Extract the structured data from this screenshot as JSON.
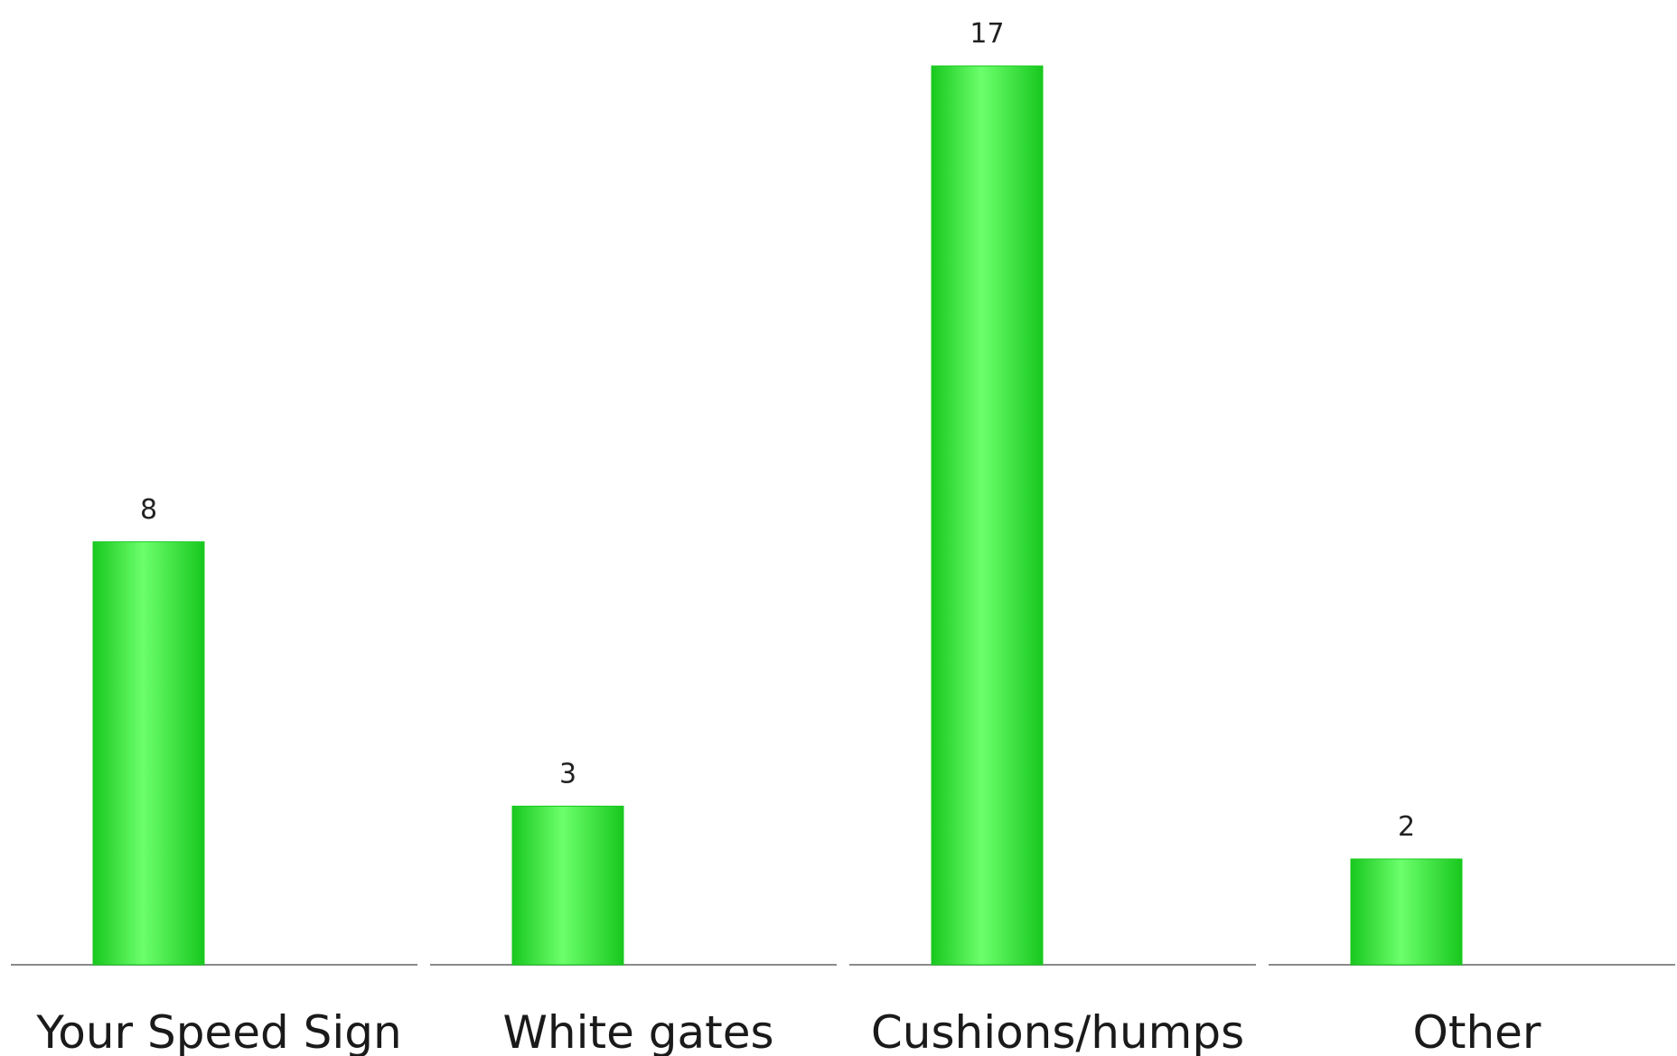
{
  "chart_data": {
    "type": "bar",
    "categories": [
      "Your Speed Sign",
      "White gates",
      "Cushions/humps",
      "Other"
    ],
    "values": [
      8,
      3,
      17,
      2
    ],
    "title": "",
    "xlabel": "",
    "ylabel": "",
    "ylim": [
      0,
      17
    ],
    "grid": false,
    "legend": "none",
    "data_labels": true,
    "colors": {
      "bar": "#22e82a",
      "bar_light": "#6cff6c",
      "bar_dark": "#18c81e",
      "baseline": "#8a8a8a"
    }
  }
}
